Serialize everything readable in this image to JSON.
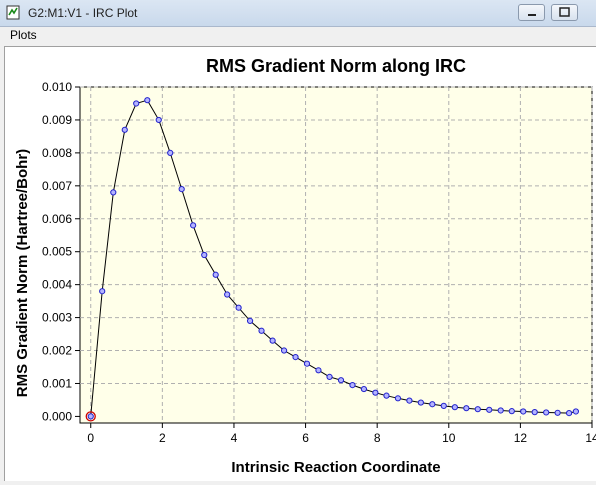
{
  "window": {
    "title": "G2:M1:V1 - IRC Plot"
  },
  "menu": {
    "items": [
      "Plots"
    ]
  },
  "chart_data": {
    "type": "line",
    "title": "RMS Gradient Norm along IRC",
    "xlabel": "Intrinsic Reaction Coordinate",
    "ylabel": "RMS Gradient Norm (Hartree/Bohr)",
    "xlim": [
      -0.3,
      14
    ],
    "ylim": [
      -0.0002,
      0.01
    ],
    "xticks": [
      "0",
      "2",
      "4",
      "6",
      "8",
      "10",
      "12",
      "14"
    ],
    "yticks": [
      "0.000",
      "0.001",
      "0.002",
      "0.003",
      "0.004",
      "0.005",
      "0.006",
      "0.007",
      "0.008",
      "0.009",
      "0.010"
    ],
    "grid": true,
    "series": [
      {
        "x": [
          0,
          0.32,
          0.63,
          0.95,
          1.27,
          1.58,
          1.9,
          2.22,
          2.54,
          2.86,
          3.17,
          3.49,
          3.81,
          4.13,
          4.45,
          4.77,
          5.08,
          5.4,
          5.72,
          6.04,
          6.36,
          6.67,
          6.99,
          7.31,
          7.63,
          7.95,
          8.26,
          8.58,
          8.9,
          9.22,
          9.54,
          9.86,
          10.17,
          10.49,
          10.81,
          11.13,
          11.45,
          11.76,
          12.08,
          12.4,
          12.72,
          13.04,
          13.36,
          13.55
        ],
        "y": [
          0.0,
          0.0038,
          0.0068,
          0.0087,
          0.0095,
          0.0096,
          0.009,
          0.008,
          0.0069,
          0.0058,
          0.0049,
          0.0043,
          0.0037,
          0.0033,
          0.0029,
          0.0026,
          0.0023,
          0.002,
          0.0018,
          0.0016,
          0.0014,
          0.0012,
          0.0011,
          0.00095,
          0.00083,
          0.00072,
          0.00063,
          0.00055,
          0.00048,
          0.00042,
          0.00037,
          0.00032,
          0.00028,
          0.00025,
          0.00022,
          0.0002,
          0.00018,
          0.00016,
          0.00015,
          0.00013,
          0.00012,
          0.00011,
          0.0001,
          0.00015
        ]
      }
    ],
    "highlight_index": 0,
    "colors": {
      "line": "#000000",
      "marker": "#2222cc",
      "marker_fill": "#b4b4ff",
      "highlight": "#cc0000",
      "plot_bg": "#ffffe9",
      "grid": "#b0b0b0"
    }
  }
}
